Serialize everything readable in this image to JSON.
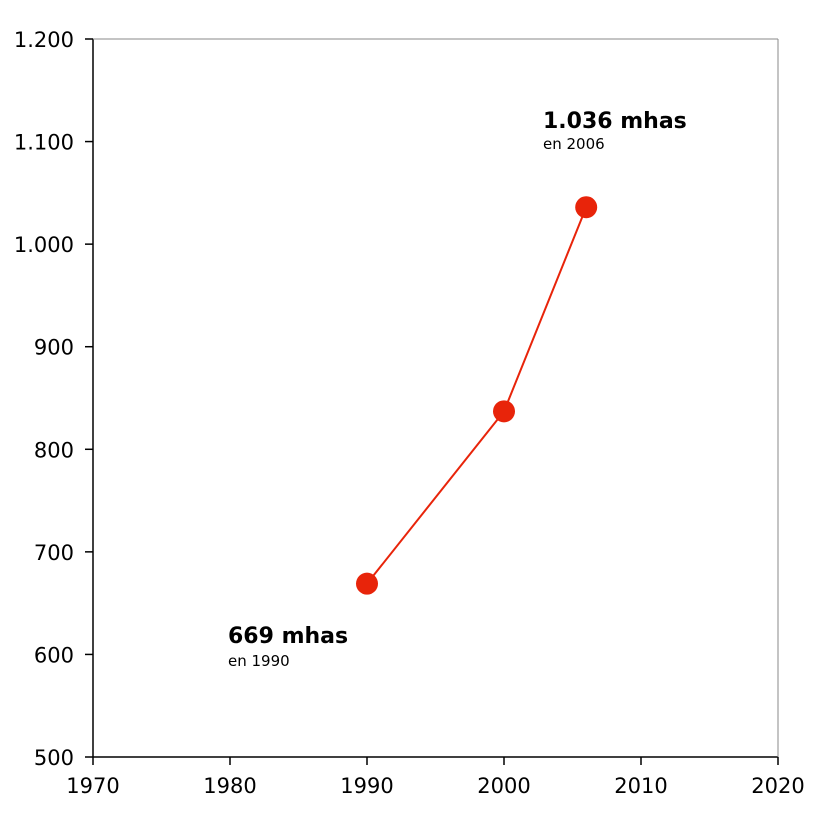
{
  "chart_data": {
    "type": "line",
    "title": "",
    "xlabel": "",
    "ylabel": "",
    "xlim": [
      1970,
      2020
    ],
    "ylim": [
      500,
      1200
    ],
    "x_ticks": [
      1970,
      1980,
      1990,
      2000,
      2010,
      2020
    ],
    "x_tick_labels": [
      "1970",
      "1980",
      "1990",
      "2000",
      "2010",
      "2020"
    ],
    "y_ticks": [
      500,
      600,
      700,
      800,
      900,
      1000,
      1100,
      1200
    ],
    "y_tick_labels": [
      "500",
      "600",
      "700",
      "800",
      "900",
      "1.000",
      "1.100",
      "1.200"
    ],
    "grid": false,
    "series": [
      {
        "x": [
          1990,
          2000,
          2006
        ],
        "y": [
          669,
          837,
          1036
        ],
        "color": "#e8240a"
      }
    ],
    "annotations": [
      {
        "text": "669 mhas",
        "subtext": "en 1990",
        "x": 1990,
        "y": 669
      },
      {
        "text": "1.036 mhas",
        "subtext": "en 2006",
        "x": 2006,
        "y": 1036
      }
    ]
  }
}
